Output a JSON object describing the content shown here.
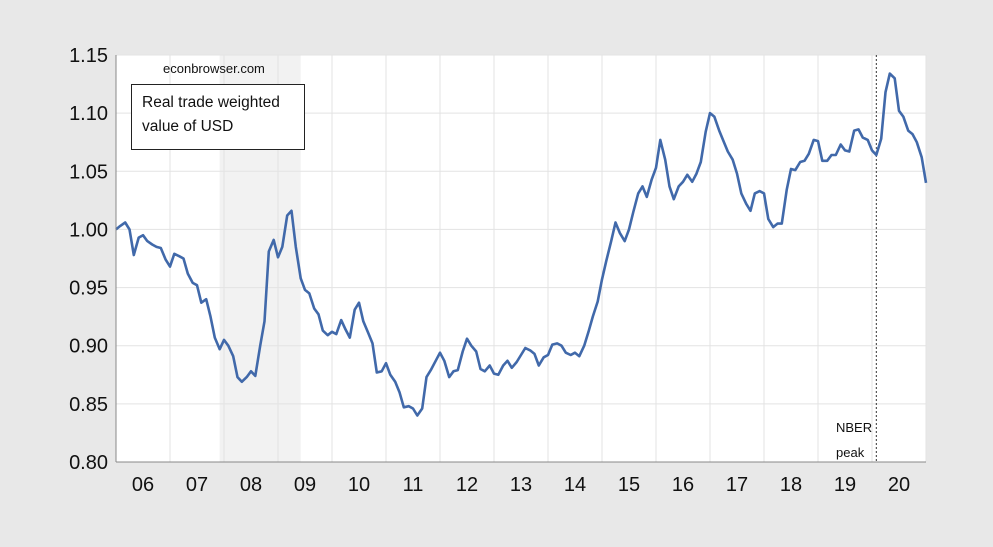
{
  "source_label": "econbrowser.com",
  "legend": {
    "line1": "Real trade weighted",
    "line2": "value of USD"
  },
  "annotation": {
    "line1": "NBER",
    "line2": "peak"
  },
  "colors": {
    "line": "#4169aa",
    "recession_shade": "#f2f2f2",
    "plot_bg": "#ffffff",
    "page_bg": "#e8e8e8",
    "grid": "#e3e3e3"
  },
  "chart_data": {
    "type": "line",
    "title": "",
    "xlabel": "",
    "ylabel": "",
    "ylim": [
      0.8,
      1.15
    ],
    "xlim": [
      2006.0,
      2021.0
    ],
    "y_ticks": [
      "0.80",
      "0.85",
      "0.90",
      "0.95",
      "1.00",
      "1.05",
      "1.10",
      "1.15"
    ],
    "x_tick_labels": [
      "06",
      "07",
      "08",
      "09",
      "10",
      "11",
      "12",
      "13",
      "14",
      "15",
      "16",
      "17",
      "18",
      "19",
      "20"
    ],
    "grid": true,
    "recession_shading": [
      [
        2007.92,
        2009.42
      ]
    ],
    "nber_peak_line": 2020.08,
    "series": [
      {
        "values": [
          [
            2006.0,
            1.0
          ],
          [
            2006.08,
            1.003
          ],
          [
            2006.17,
            1.006
          ],
          [
            2006.25,
            1.0
          ],
          [
            2006.33,
            0.978
          ],
          [
            2006.42,
            0.993
          ],
          [
            2006.5,
            0.995
          ],
          [
            2006.58,
            0.99
          ],
          [
            2006.67,
            0.987
          ],
          [
            2006.75,
            0.985
          ],
          [
            2006.83,
            0.984
          ],
          [
            2006.92,
            0.974
          ],
          [
            2007.0,
            0.968
          ],
          [
            2007.08,
            0.979
          ],
          [
            2007.17,
            0.977
          ],
          [
            2007.25,
            0.975
          ],
          [
            2007.33,
            0.962
          ],
          [
            2007.42,
            0.954
          ],
          [
            2007.5,
            0.952
          ],
          [
            2007.58,
            0.937
          ],
          [
            2007.67,
            0.94
          ],
          [
            2007.75,
            0.925
          ],
          [
            2007.83,
            0.907
          ],
          [
            2007.92,
            0.897
          ],
          [
            2008.0,
            0.905
          ],
          [
            2008.08,
            0.9
          ],
          [
            2008.17,
            0.891
          ],
          [
            2008.25,
            0.873
          ],
          [
            2008.33,
            0.869
          ],
          [
            2008.42,
            0.873
          ],
          [
            2008.5,
            0.878
          ],
          [
            2008.58,
            0.874
          ],
          [
            2008.67,
            0.9
          ],
          [
            2008.75,
            0.921
          ],
          [
            2008.83,
            0.981
          ],
          [
            2008.92,
            0.991
          ],
          [
            2009.0,
            0.976
          ],
          [
            2009.08,
            0.985
          ],
          [
            2009.17,
            1.012
          ],
          [
            2009.25,
            1.016
          ],
          [
            2009.33,
            0.985
          ],
          [
            2009.42,
            0.958
          ],
          [
            2009.5,
            0.948
          ],
          [
            2009.58,
            0.945
          ],
          [
            2009.67,
            0.932
          ],
          [
            2009.75,
            0.927
          ],
          [
            2009.83,
            0.913
          ],
          [
            2009.92,
            0.909
          ],
          [
            2010.0,
            0.912
          ],
          [
            2010.08,
            0.91
          ],
          [
            2010.17,
            0.922
          ],
          [
            2010.25,
            0.914
          ],
          [
            2010.33,
            0.907
          ],
          [
            2010.42,
            0.931
          ],
          [
            2010.5,
            0.937
          ],
          [
            2010.58,
            0.921
          ],
          [
            2010.67,
            0.911
          ],
          [
            2010.75,
            0.902
          ],
          [
            2010.83,
            0.877
          ],
          [
            2010.92,
            0.878
          ],
          [
            2011.0,
            0.885
          ],
          [
            2011.08,
            0.875
          ],
          [
            2011.17,
            0.869
          ],
          [
            2011.25,
            0.86
          ],
          [
            2011.33,
            0.847
          ],
          [
            2011.42,
            0.848
          ],
          [
            2011.5,
            0.846
          ],
          [
            2011.58,
            0.84
          ],
          [
            2011.67,
            0.846
          ],
          [
            2011.75,
            0.873
          ],
          [
            2011.83,
            0.879
          ],
          [
            2011.92,
            0.887
          ],
          [
            2012.0,
            0.894
          ],
          [
            2012.08,
            0.887
          ],
          [
            2012.17,
            0.873
          ],
          [
            2012.25,
            0.878
          ],
          [
            2012.33,
            0.879
          ],
          [
            2012.42,
            0.895
          ],
          [
            2012.5,
            0.906
          ],
          [
            2012.58,
            0.9
          ],
          [
            2012.67,
            0.895
          ],
          [
            2012.75,
            0.88
          ],
          [
            2012.83,
            0.878
          ],
          [
            2012.92,
            0.883
          ],
          [
            2013.0,
            0.876
          ],
          [
            2013.08,
            0.875
          ],
          [
            2013.17,
            0.883
          ],
          [
            2013.25,
            0.887
          ],
          [
            2013.33,
            0.881
          ],
          [
            2013.42,
            0.886
          ],
          [
            2013.5,
            0.892
          ],
          [
            2013.58,
            0.898
          ],
          [
            2013.67,
            0.896
          ],
          [
            2013.75,
            0.893
          ],
          [
            2013.83,
            0.883
          ],
          [
            2013.92,
            0.89
          ],
          [
            2014.0,
            0.892
          ],
          [
            2014.08,
            0.901
          ],
          [
            2014.17,
            0.902
          ],
          [
            2014.25,
            0.9
          ],
          [
            2014.33,
            0.894
          ],
          [
            2014.42,
            0.892
          ],
          [
            2014.5,
            0.894
          ],
          [
            2014.58,
            0.891
          ],
          [
            2014.67,
            0.9
          ],
          [
            2014.75,
            0.912
          ],
          [
            2014.83,
            0.925
          ],
          [
            2014.92,
            0.938
          ],
          [
            2015.0,
            0.957
          ],
          [
            2015.08,
            0.973
          ],
          [
            2015.17,
            0.99
          ],
          [
            2015.25,
            1.006
          ],
          [
            2015.33,
            0.997
          ],
          [
            2015.42,
            0.99
          ],
          [
            2015.5,
            1.0
          ],
          [
            2015.58,
            1.015
          ],
          [
            2015.67,
            1.031
          ],
          [
            2015.75,
            1.037
          ],
          [
            2015.83,
            1.028
          ],
          [
            2015.92,
            1.043
          ],
          [
            2016.0,
            1.053
          ],
          [
            2016.08,
            1.077
          ],
          [
            2016.17,
            1.06
          ],
          [
            2016.25,
            1.037
          ],
          [
            2016.33,
            1.026
          ],
          [
            2016.42,
            1.037
          ],
          [
            2016.5,
            1.041
          ],
          [
            2016.58,
            1.047
          ],
          [
            2016.67,
            1.041
          ],
          [
            2016.75,
            1.048
          ],
          [
            2016.83,
            1.058
          ],
          [
            2016.92,
            1.084
          ],
          [
            2017.0,
            1.1
          ],
          [
            2017.08,
            1.097
          ],
          [
            2017.17,
            1.085
          ],
          [
            2017.25,
            1.076
          ],
          [
            2017.33,
            1.067
          ],
          [
            2017.42,
            1.06
          ],
          [
            2017.5,
            1.048
          ],
          [
            2017.58,
            1.031
          ],
          [
            2017.67,
            1.022
          ],
          [
            2017.75,
            1.016
          ],
          [
            2017.83,
            1.031
          ],
          [
            2017.92,
            1.033
          ],
          [
            2018.0,
            1.031
          ],
          [
            2018.08,
            1.009
          ],
          [
            2018.17,
            1.002
          ],
          [
            2018.25,
            1.005
          ],
          [
            2018.33,
            1.005
          ],
          [
            2018.42,
            1.034
          ],
          [
            2018.5,
            1.052
          ],
          [
            2018.58,
            1.051
          ],
          [
            2018.67,
            1.058
          ],
          [
            2018.75,
            1.059
          ],
          [
            2018.83,
            1.065
          ],
          [
            2018.92,
            1.077
          ],
          [
            2019.0,
            1.076
          ],
          [
            2019.08,
            1.059
          ],
          [
            2019.17,
            1.059
          ],
          [
            2019.25,
            1.064
          ],
          [
            2019.33,
            1.064
          ],
          [
            2019.42,
            1.073
          ],
          [
            2019.5,
            1.068
          ],
          [
            2019.58,
            1.067
          ],
          [
            2019.67,
            1.085
          ],
          [
            2019.75,
            1.086
          ],
          [
            2019.83,
            1.079
          ],
          [
            2019.92,
            1.077
          ],
          [
            2020.0,
            1.068
          ],
          [
            2020.08,
            1.064
          ],
          [
            2020.17,
            1.078
          ],
          [
            2020.25,
            1.118
          ],
          [
            2020.33,
            1.134
          ],
          [
            2020.42,
            1.13
          ],
          [
            2020.5,
            1.102
          ],
          [
            2020.58,
            1.097
          ],
          [
            2020.67,
            1.085
          ],
          [
            2020.75,
            1.082
          ],
          [
            2020.83,
            1.075
          ],
          [
            2020.92,
            1.062
          ],
          [
            2021.0,
            1.04
          ]
        ]
      }
    ]
  }
}
